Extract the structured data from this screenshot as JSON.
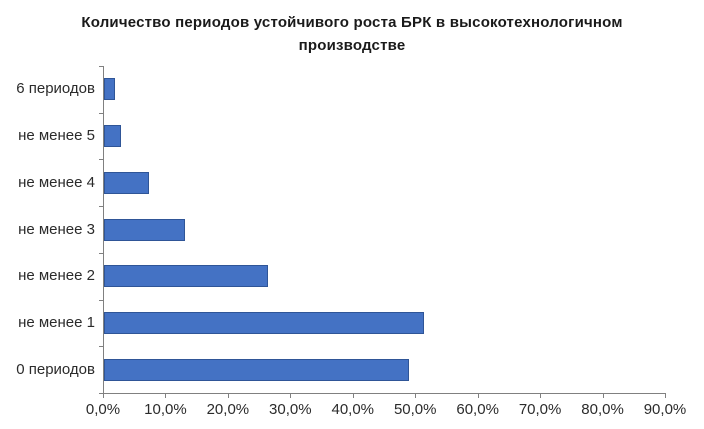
{
  "chart_data": {
    "type": "bar",
    "orientation": "horizontal",
    "title": "Количество периодов устойчивого роста БРК в высокотехнологичном производстве",
    "categories": [
      "6 периодов",
      "не менее 5",
      "не менее 4",
      "не менее 3",
      "не менее 2",
      "не менее 1",
      "0 периодов"
    ],
    "values": [
      1.8,
      2.8,
      7.2,
      13.0,
      26.3,
      51.2,
      48.8
    ],
    "xlabel": "",
    "ylabel": "",
    "xlim": [
      0,
      90
    ],
    "x_tick_labels": [
      "0,0%",
      "10,0%",
      "20,0%",
      "30,0%",
      "40,0%",
      "50,0%",
      "60,0%",
      "70,0%",
      "80,0%",
      "90,0%"
    ],
    "grid": false,
    "legend_position": "none",
    "bar_color": "#4472c4",
    "bar_border_color": "#2f5597",
    "axis_color": "#808080",
    "label_color": "#2b2b2b"
  }
}
